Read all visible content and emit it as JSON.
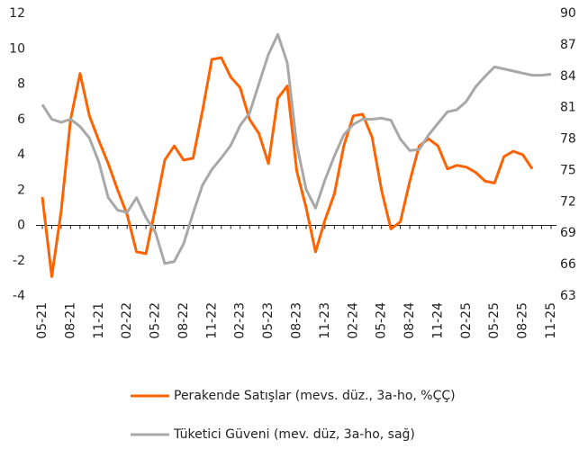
{
  "chart_data": {
    "type": "line",
    "categories": [
      "05-21",
      null,
      null,
      "08-21",
      null,
      null,
      "11-21",
      null,
      null,
      "02-22",
      null,
      null,
      "05-22",
      null,
      null,
      "08-22",
      null,
      null,
      "11-22",
      null,
      null,
      "02-23",
      null,
      null,
      "05-23",
      null,
      null,
      "08-23",
      null,
      null,
      "11-23",
      null,
      null,
      "02-24",
      null,
      null,
      "05-24",
      null,
      null,
      "08-24",
      null,
      null,
      "11-24",
      null,
      null,
      "02-25",
      null,
      null,
      "05-25",
      null,
      null,
      "08-25",
      null,
      null,
      "11-25"
    ],
    "series": [
      {
        "name": "Perakende Satışlar (mevs. düz., 3a-ho, %ÇÇ)",
        "color": "#ff6200",
        "axis": "y",
        "values": [
          1.6,
          -2.9,
          0.8,
          6.0,
          8.6,
          6.2,
          4.8,
          3.5,
          2.0,
          0.6,
          -1.5,
          -1.6,
          1.0,
          3.7,
          4.5,
          3.7,
          3.8,
          6.5,
          9.4,
          9.5,
          8.4,
          7.8,
          6.0,
          5.2,
          3.5,
          7.2,
          7.9,
          3.1,
          1.0,
          -1.5,
          0.3,
          1.8,
          4.5,
          6.2,
          6.3,
          5.0,
          2.0,
          -0.2,
          0.2,
          2.5,
          4.5,
          4.9,
          4.5,
          3.2,
          3.4,
          3.3,
          3.0,
          2.5,
          2.4,
          3.9,
          4.2,
          4.0,
          3.2,
          null,
          null
        ]
      },
      {
        "name": "Tüketici Güveni (mev. düz, 3a-ho, sağ)",
        "color": "#a8a8a8",
        "axis": "y2",
        "values": [
          81.3,
          79.9,
          79.6,
          79.9,
          79.2,
          78.1,
          75.8,
          72.4,
          71.2,
          71.0,
          72.4,
          70.5,
          69.1,
          66.1,
          66.3,
          68.0,
          70.9,
          73.6,
          75.1,
          76.2,
          77.4,
          79.3,
          80.5,
          83.3,
          86.1,
          88.0,
          85.3,
          77.5,
          73.2,
          71.4,
          74.1,
          76.4,
          78.4,
          79.4,
          79.9,
          79.9,
          80.0,
          79.8,
          78.0,
          76.9,
          77.0,
          78.4,
          79.5,
          80.6,
          80.8,
          81.6,
          83.0,
          84.0,
          84.9,
          84.7,
          84.5,
          84.3,
          84.1,
          84.1,
          84.2
        ]
      }
    ],
    "ylim": [
      -4,
      12
    ],
    "yticks": [
      -4,
      -2,
      0,
      2,
      4,
      6,
      8,
      10,
      12
    ],
    "y2lim": [
      63,
      90
    ],
    "y2ticks": [
      63,
      66,
      69,
      72,
      75,
      78,
      81,
      84,
      87,
      90
    ],
    "legend": "bottom",
    "grid": false
  }
}
